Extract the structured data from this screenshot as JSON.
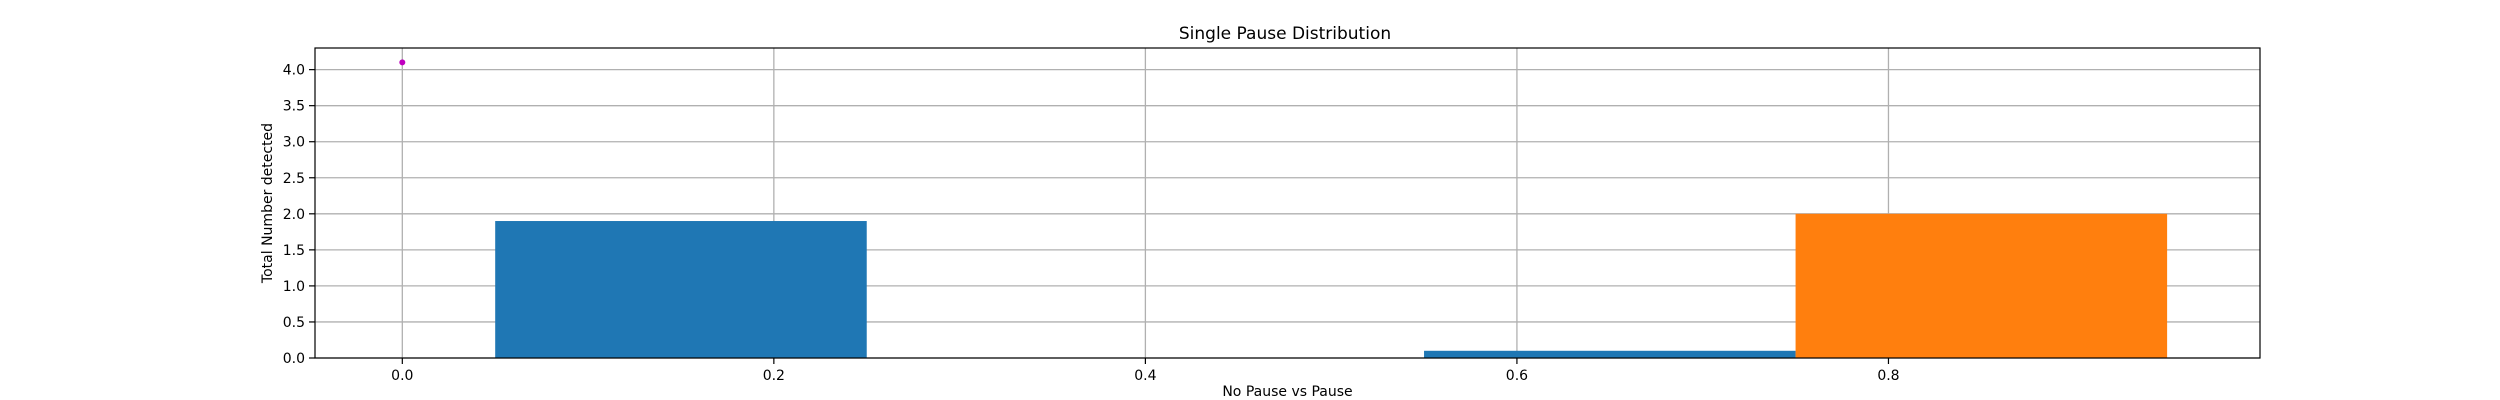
{
  "chart_data": {
    "type": "bar",
    "title": "Single Pause Distribution",
    "xlabel": "No Pause vs Pause",
    "ylabel": "Total Number detected",
    "xlim": [
      -0.047,
      1.0
    ],
    "ylim": [
      0,
      4.3
    ],
    "xticks": [
      0.0,
      0.2,
      0.4,
      0.6,
      0.8
    ],
    "xtick_labels": [
      "0.0",
      "0.2",
      "0.4",
      "0.6",
      "0.8"
    ],
    "yticks": [
      0.0,
      0.5,
      1.0,
      1.5,
      2.0,
      2.5,
      3.0,
      3.5,
      4.0
    ],
    "ytick_labels": [
      "0.0",
      "0.5",
      "1.0",
      "1.5",
      "2.0",
      "2.5",
      "3.0",
      "3.5",
      "4.0"
    ],
    "grid": true,
    "series": [
      {
        "color": "#1f77b4",
        "bars": [
          {
            "x_start": 0.05,
            "x_end": 0.25,
            "value": 1.9
          },
          {
            "x_start": 0.55,
            "x_end": 0.75,
            "value": 0.1
          }
        ]
      },
      {
        "color": "#ff7f0e",
        "bars": [
          {
            "x_start": 0.75,
            "x_end": 0.95,
            "value": 2.0
          }
        ]
      }
    ],
    "markers": [
      {
        "x": 0.0,
        "y": 4.1,
        "color": "#bf00bf"
      }
    ]
  }
}
